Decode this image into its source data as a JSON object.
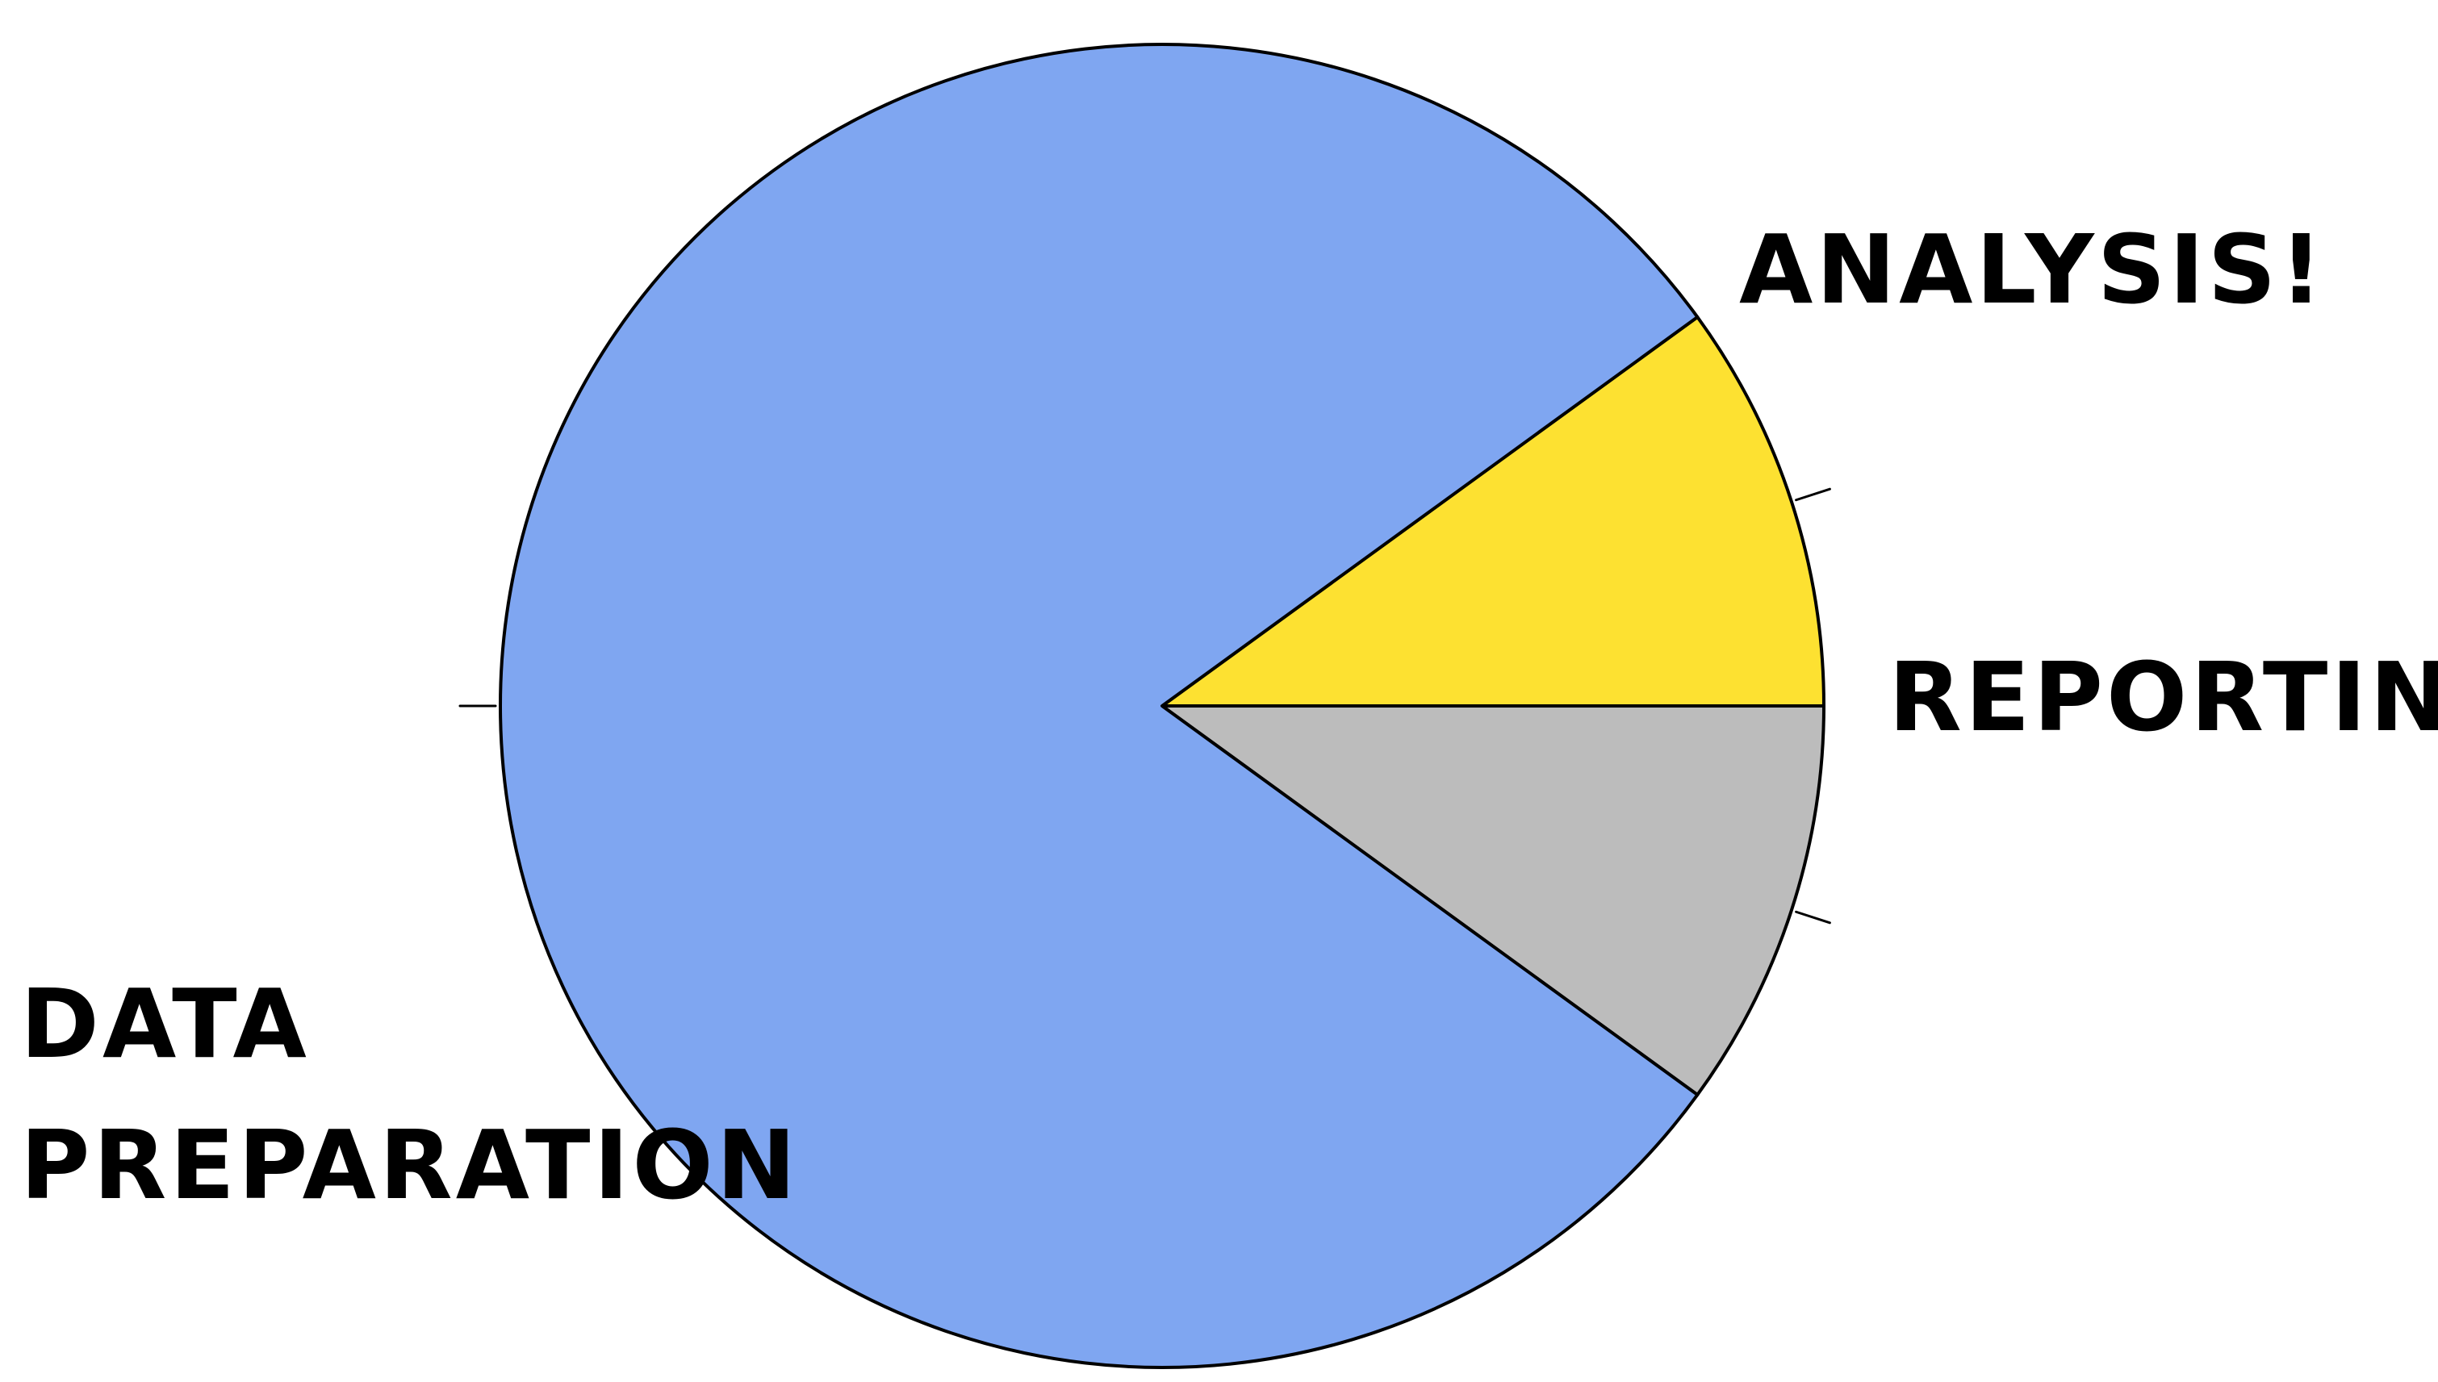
{
  "chart_data": {
    "type": "pie",
    "title": "",
    "start_angle_deg": -36,
    "direction": "clockwise",
    "slices": [
      {
        "label": "ANALYSIS!",
        "value": 10,
        "color": "#fde131"
      },
      {
        "label": "REPORTING",
        "value": 10,
        "color": "#bcbcbc"
      },
      {
        "label": "DATA PREPARATION",
        "value": 80,
        "color": "#7fa6f1"
      }
    ],
    "label_lines": {
      "DATA PREPARATION": [
        "DATA",
        "PREPARATION"
      ]
    },
    "slice_border_color": "#000000",
    "style": "xkcd hand-drawn"
  }
}
